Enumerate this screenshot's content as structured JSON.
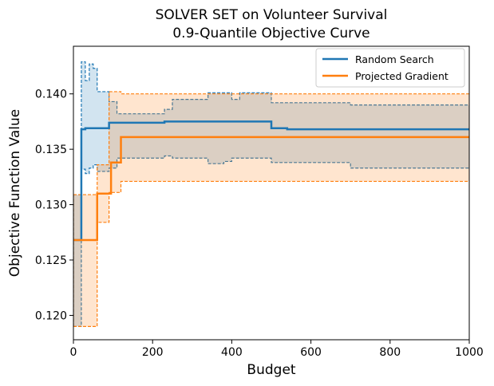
{
  "chart_data": {
    "type": "line",
    "title_line1": "SOLVER SET on Volunteer Survival",
    "title_line2": "0.9-Quantile Objective Curve",
    "xlabel": "Budget",
    "ylabel": "Objective Function Value",
    "xlim": [
      0,
      1000
    ],
    "ylim": [
      0.1178,
      0.1443
    ],
    "x_ticks": [
      0,
      200,
      400,
      600,
      800,
      1000
    ],
    "x_tick_labels": [
      "0",
      "200",
      "400",
      "600",
      "800",
      "1000"
    ],
    "y_ticks": [
      0.12,
      0.125,
      0.13,
      0.135,
      0.14
    ],
    "y_tick_labels": [
      "0.120",
      "0.125",
      "0.130",
      "0.135",
      "0.140"
    ],
    "grid": false,
    "legend_position": "top-right",
    "step_style": "post",
    "series": [
      {
        "name": "Random Search",
        "color": "#1f77b4",
        "fill_color": "#1f77b4",
        "x": [
          0,
          20,
          30,
          40,
          60,
          90,
          200,
          230,
          500,
          540,
          1000
        ],
        "y": [
          0.1268,
          0.1368,
          0.1369,
          0.1369,
          0.1369,
          0.1374,
          0.1374,
          0.1375,
          0.1369,
          0.1368,
          0.1368
        ],
        "ci_x": [
          0,
          20,
          30,
          40,
          50,
          60,
          90,
          110,
          230,
          250,
          340,
          380,
          400,
          420,
          500,
          700,
          1000
        ],
        "ci_lower": [
          0.119,
          0.1332,
          0.1328,
          0.1333,
          0.1336,
          0.133,
          0.1333,
          0.1342,
          0.1344,
          0.1342,
          0.1337,
          0.1339,
          0.1342,
          0.1342,
          0.1338,
          0.1333,
          0.1333
        ],
        "ci_upper": [
          0.1309,
          0.1429,
          0.1412,
          0.1427,
          0.1423,
          0.1402,
          0.1393,
          0.1382,
          0.1386,
          0.1395,
          0.1401,
          0.1401,
          0.1395,
          0.1401,
          0.1392,
          0.139,
          0.139
        ]
      },
      {
        "name": "Projected Gradient",
        "color": "#ff7f0e",
        "fill_color": "#ff7f0e",
        "x": [
          0,
          30,
          60,
          95,
          120,
          1000
        ],
        "y": [
          0.1268,
          0.1268,
          0.131,
          0.1338,
          0.1361,
          0.1361
        ],
        "ci_x": [
          0,
          30,
          60,
          90,
          120,
          1000
        ],
        "ci_lower": [
          0.119,
          0.119,
          0.1284,
          0.1311,
          0.1321,
          0.1321
        ],
        "ci_upper": [
          0.1309,
          0.1309,
          0.1336,
          0.1402,
          0.14,
          0.14
        ]
      }
    ]
  }
}
